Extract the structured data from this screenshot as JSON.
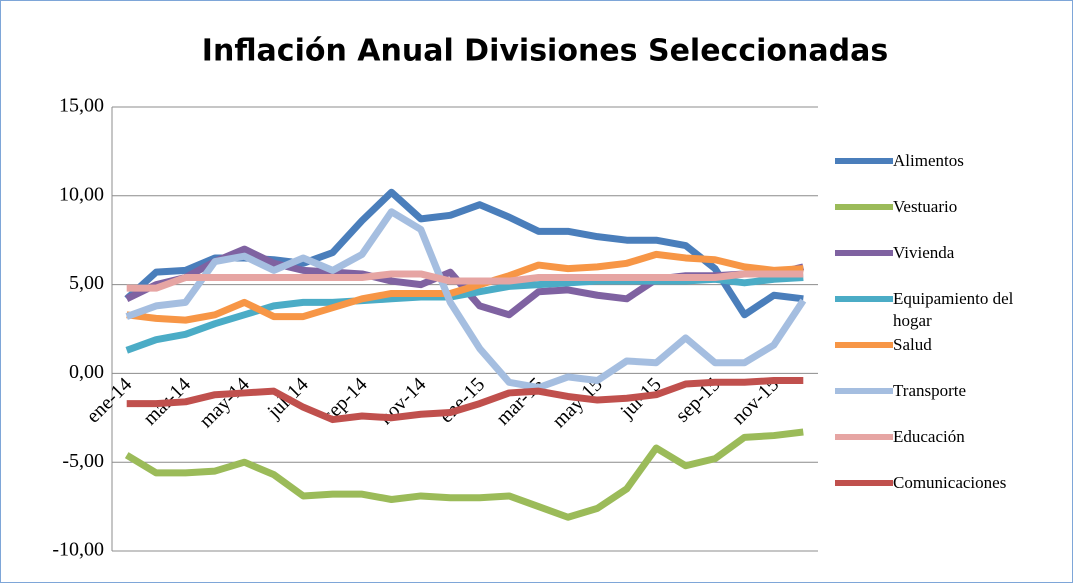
{
  "chart_data": {
    "type": "line",
    "title": "Inflación Anual Divisiones Seleccionadas",
    "categories": [
      "ene-14",
      null,
      "mar-14",
      null,
      "may-14",
      null,
      "jul-14",
      null,
      "sep-14",
      null,
      "nov-14",
      null,
      "ene-15",
      null,
      "mar-15",
      null,
      "may-15",
      null,
      "jul-15",
      null,
      "sep-15",
      null,
      "nov-15",
      null
    ],
    "ylim": [
      -10,
      15
    ],
    "yticks": [
      {
        "value": -10,
        "label": "-10,00"
      },
      {
        "value": -5,
        "label": "-5,00"
      },
      {
        "value": 0,
        "label": "0,00"
      },
      {
        "value": 5,
        "label": "5,00"
      },
      {
        "value": 10,
        "label": "10,00"
      },
      {
        "value": 15,
        "label": "15,00"
      }
    ],
    "grid": true,
    "series": [
      {
        "name": "Alimentos",
        "color": "#4a7ebb",
        "values": [
          4.2,
          5.7,
          5.8,
          6.5,
          6.5,
          6.4,
          6.2,
          6.8,
          8.6,
          10.2,
          8.7,
          8.9,
          9.5,
          8.8,
          8.0,
          8.0,
          7.7,
          7.5,
          7.5,
          7.2,
          5.9,
          3.3,
          4.4,
          4.2
        ]
      },
      {
        "name": "Vestuario",
        "color": "#9bbb59",
        "values": [
          -4.6,
          -5.6,
          -5.6,
          -5.5,
          -5.0,
          -5.7,
          -6.9,
          -6.8,
          -6.8,
          -7.1,
          -6.9,
          -7.0,
          -7.0,
          -6.9,
          -7.5,
          -8.1,
          -7.6,
          -6.5,
          -4.2,
          -5.2,
          -4.8,
          -3.6,
          -3.5,
          -3.3
        ]
      },
      {
        "name": "Vivienda",
        "color": "#7f62a1",
        "values": [
          4.2,
          5.0,
          5.4,
          6.3,
          7.0,
          6.2,
          5.8,
          5.7,
          5.6,
          5.2,
          5.0,
          5.7,
          3.8,
          3.3,
          4.6,
          4.7,
          4.4,
          4.2,
          5.3,
          5.5,
          5.5,
          5.6,
          5.6,
          6.0
        ]
      },
      {
        "name": "Equipamiento del hogar",
        "color": "#4bacc6",
        "values": [
          1.3,
          1.9,
          2.2,
          2.8,
          3.3,
          3.8,
          4.0,
          4.0,
          4.1,
          4.2,
          4.3,
          4.3,
          4.6,
          4.9,
          5.0,
          5.1,
          5.2,
          5.2,
          5.2,
          5.2,
          5.3,
          5.1,
          5.3,
          5.4
        ]
      },
      {
        "name": "Salud",
        "color": "#f79646",
        "values": [
          3.3,
          3.1,
          3.0,
          3.3,
          4.0,
          3.2,
          3.2,
          3.7,
          4.2,
          4.5,
          4.5,
          4.5,
          5.0,
          5.5,
          6.1,
          5.9,
          6.0,
          6.2,
          6.7,
          6.5,
          6.4,
          6.0,
          5.8,
          5.9
        ]
      },
      {
        "name": "Transporte",
        "color": "#a5bee0",
        "values": [
          3.2,
          3.8,
          4.0,
          6.3,
          6.6,
          5.8,
          6.5,
          5.8,
          6.7,
          9.1,
          8.1,
          4.0,
          1.4,
          -0.5,
          -0.8,
          -0.2,
          -0.4,
          0.7,
          0.6,
          2.0,
          0.6,
          0.6,
          1.6,
          4.1
        ]
      },
      {
        "name": "Educación",
        "color": "#e6a5a3",
        "values": [
          4.8,
          4.8,
          5.4,
          5.4,
          5.4,
          5.4,
          5.4,
          5.4,
          5.4,
          5.6,
          5.6,
          5.2,
          5.2,
          5.2,
          5.4,
          5.4,
          5.4,
          5.4,
          5.4,
          5.4,
          5.4,
          5.6,
          5.6,
          5.6
        ]
      },
      {
        "name": "Comunicaciones",
        "color": "#c0504d",
        "values": [
          -1.7,
          -1.7,
          -1.6,
          -1.2,
          -1.1,
          -1.0,
          -1.9,
          -2.6,
          -2.4,
          -2.5,
          -2.3,
          -2.2,
          -1.7,
          -1.1,
          -1.0,
          -1.3,
          -1.5,
          -1.4,
          -1.2,
          -0.6,
          -0.5,
          -0.5,
          -0.4,
          -0.4
        ]
      }
    ]
  }
}
